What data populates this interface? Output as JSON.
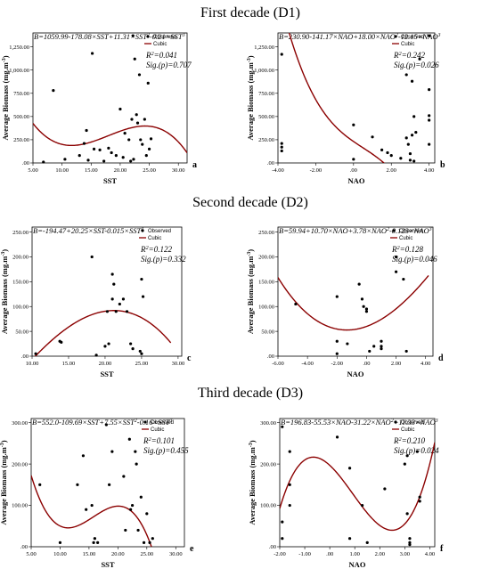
{
  "decades": [
    {
      "title": "First decade (D1)"
    },
    {
      "title": "Second decade (D2)"
    },
    {
      "title": "Third decade (D3)"
    }
  ],
  "chart_data": [
    {
      "panel": "a",
      "type": "scatter",
      "decade": 0,
      "equation": "B=1059.99-178.08×SST+11.31×SST^2-0.21×SST^3",
      "r2": "R^2=0.041",
      "sig": "Sig.(p)=0.707",
      "xlabel": "SST",
      "ylabel": "Average Biomass (mg.m^-3)",
      "xlim": [
        5,
        31.5
      ],
      "ylim": [
        0,
        1400
      ],
      "xticks": [
        5,
        10,
        15,
        20,
        25,
        30
      ],
      "xticklabels": [
        "5.00",
        "10.00",
        "15.00",
        "20.00",
        "25.00",
        "30.00"
      ],
      "yticks": [
        0,
        250,
        500,
        750,
        1000,
        1250
      ],
      "yticklabels": [
        ".00",
        "250.00",
        "500.00",
        "750.00",
        "1,000.00",
        "1,250.00"
      ],
      "legend": [
        "Observed",
        "Cubic"
      ],
      "legend_position": "top-right",
      "cubic_coeffs": [
        1059.99,
        -178.08,
        11.31,
        -0.21
      ],
      "curve_x_range": [
        5,
        31.5
      ],
      "points": [
        [
          6.8,
          10
        ],
        [
          8.5,
          780
        ],
        [
          10.5,
          40
        ],
        [
          13,
          80
        ],
        [
          13.8,
          210
        ],
        [
          14.2,
          350
        ],
        [
          14.5,
          30
        ],
        [
          15.2,
          1180
        ],
        [
          15.5,
          150
        ],
        [
          16.5,
          140
        ],
        [
          17.2,
          20
        ],
        [
          18,
          160
        ],
        [
          18.5,
          110
        ],
        [
          19.3,
          80
        ],
        [
          20,
          580
        ],
        [
          20.5,
          60
        ],
        [
          20.8,
          320
        ],
        [
          21.5,
          250
        ],
        [
          21.8,
          20
        ],
        [
          22,
          470
        ],
        [
          22.2,
          1370
        ],
        [
          22.3,
          40
        ],
        [
          22.5,
          1120
        ],
        [
          22.8,
          520
        ],
        [
          23,
          430
        ],
        [
          23.3,
          950
        ],
        [
          23.5,
          250
        ],
        [
          23.8,
          200
        ],
        [
          24.2,
          470
        ],
        [
          24.5,
          80
        ],
        [
          24.8,
          860
        ],
        [
          25,
          150
        ],
        [
          25.3,
          260
        ]
      ]
    },
    {
      "panel": "b",
      "type": "scatter",
      "decade": 0,
      "equation": "B=230.90-141.17×NAO+18.00×NAO^2-12.15×NAO^3",
      "r2": "R^2=0.242",
      "sig": "Sig.(p)=0.026",
      "xlabel": "NAO",
      "ylabel": "Average Biomass (mg.m^-3)",
      "xlim": [
        -4,
        4.3
      ],
      "ylim": [
        0,
        1400
      ],
      "xticks": [
        -4,
        -2,
        0,
        2,
        4
      ],
      "xticklabels": [
        "-4.00",
        "-2.00",
        ".00",
        "2.00",
        "4.00"
      ],
      "yticks": [
        0,
        250,
        500,
        750,
        1000,
        1250
      ],
      "yticklabels": [
        ".00",
        "250.00",
        "500.00",
        "750.00",
        "1,000.00",
        "1,250.00"
      ],
      "legend": [
        "Observed",
        "Cubic"
      ],
      "legend_position": "top-right",
      "cubic_coeffs": [
        230.9,
        -141.17,
        18.0,
        -12.15
      ],
      "curve_x_range": [
        -4,
        4.3
      ],
      "points": [
        [
          -3.8,
          1170
        ],
        [
          -3.8,
          130
        ],
        [
          -3.8,
          170
        ],
        [
          -3.8,
          210
        ],
        [
          0,
          410
        ],
        [
          0,
          40
        ],
        [
          1,
          280
        ],
        [
          1.5,
          140
        ],
        [
          1.8,
          110
        ],
        [
          2,
          80
        ],
        [
          2.5,
          50
        ],
        [
          2.8,
          270
        ],
        [
          2.8,
          950
        ],
        [
          2.9,
          200
        ],
        [
          3,
          100
        ],
        [
          3,
          30
        ],
        [
          3.1,
          880
        ],
        [
          3.1,
          300
        ],
        [
          3.2,
          500
        ],
        [
          3.2,
          20
        ],
        [
          3.3,
          330
        ],
        [
          3.5,
          1120
        ],
        [
          4,
          200
        ],
        [
          4,
          460
        ],
        [
          4,
          510
        ],
        [
          4,
          790
        ],
        [
          4,
          1370
        ]
      ]
    },
    {
      "panel": "c",
      "type": "scatter",
      "decade": 1,
      "equation": "B=-194.47+20.25×SST-0.015×SST^3",
      "r2": "R^2=0.122",
      "sig": "Sig.(p)=0.332",
      "xlabel": "SST",
      "ylabel": "Average Biomass (mg.m^-3)",
      "xlim": [
        10,
        30.5
      ],
      "ylim": [
        0,
        260
      ],
      "xticks": [
        10,
        15,
        20,
        25,
        30
      ],
      "xticklabels": [
        "10.00",
        "15.00",
        "20.00",
        "25.00",
        "30.00"
      ],
      "yticks": [
        0,
        50,
        100,
        150,
        200,
        250
      ],
      "yticklabels": [
        ".00",
        "50.00",
        "100.00",
        "150.00",
        "200.00",
        "250.00"
      ],
      "legend": [
        "Observed",
        "Cubic"
      ],
      "legend_position": "top-right",
      "cubic_coeffs": [
        -194.47,
        20.25,
        0,
        -0.015
      ],
      "curve_x_range": [
        10,
        29
      ],
      "points": [
        [
          10.5,
          5
        ],
        [
          13.8,
          30
        ],
        [
          14,
          28
        ],
        [
          18.2,
          200
        ],
        [
          18.8,
          2
        ],
        [
          20,
          20
        ],
        [
          20.3,
          90
        ],
        [
          20.5,
          25
        ],
        [
          21,
          115
        ],
        [
          21,
          165
        ],
        [
          21.2,
          145
        ],
        [
          21.5,
          90
        ],
        [
          22,
          105
        ],
        [
          22.5,
          115
        ],
        [
          23,
          90
        ],
        [
          23.5,
          25
        ],
        [
          23.8,
          15
        ],
        [
          24.8,
          10
        ],
        [
          25,
          155
        ],
        [
          25,
          5
        ],
        [
          25.2,
          120
        ]
      ]
    },
    {
      "panel": "d",
      "type": "scatter",
      "decade": 1,
      "equation": "B=59.94+10.70×NAO+3.78×NAO^2-0.123×NAO^3",
      "r2": "R^2=0.128",
      "sig": "Sig.(p)=0.046",
      "xlabel": "NAO",
      "ylabel": "Average Biomass (mg.m^-3)",
      "xlim": [
        -6,
        4.5
      ],
      "ylim": [
        0,
        260
      ],
      "xticks": [
        -6,
        -4,
        -2,
        0,
        2,
        4
      ],
      "xticklabels": [
        "-6.00",
        "-4.00",
        "-2.00",
        ".00",
        "2.00",
        "4.00"
      ],
      "yticks": [
        0,
        50,
        100,
        150,
        200,
        250
      ],
      "yticklabels": [
        ".00",
        "50.00",
        "100.00",
        "150.00",
        "200.00",
        "250.00"
      ],
      "legend": [
        "Observed",
        "Cubic"
      ],
      "legend_position": "top-right",
      "cubic_coeffs": [
        59.94,
        10.7,
        3.78,
        -0.123
      ],
      "curve_x_range": [
        -6,
        4.2
      ],
      "points": [
        [
          -4.8,
          105
        ],
        [
          -2,
          120
        ],
        [
          -2,
          30
        ],
        [
          -2,
          5
        ],
        [
          -1.3,
          25
        ],
        [
          -0.5,
          145
        ],
        [
          -0.3,
          115
        ],
        [
          -0.2,
          100
        ],
        [
          0,
          90
        ],
        [
          0,
          95
        ],
        [
          0.2,
          10
        ],
        [
          0.5,
          20
        ],
        [
          1,
          20
        ],
        [
          1,
          30
        ],
        [
          1,
          15
        ],
        [
          2,
          200
        ],
        [
          2,
          170
        ],
        [
          2.5,
          155
        ],
        [
          2.7,
          10
        ]
      ]
    },
    {
      "panel": "e",
      "type": "scatter",
      "decade": 2,
      "equation": "B=552.0-109.69×SST+7.55×SST^2-0.16×SST^3",
      "r2": "R^2=0.101",
      "sig": "Sig.(p)=0.455",
      "xlabel": "SST",
      "ylabel": "Average Biomass (mg.m^-3)",
      "xlim": [
        5,
        31.5
      ],
      "ylim": [
        0,
        310
      ],
      "xticks": [
        5,
        10,
        15,
        20,
        25,
        30
      ],
      "xticklabels": [
        "5.00",
        "10.00",
        "15.00",
        "20.00",
        "25.00",
        "30.00"
      ],
      "yticks": [
        0,
        100,
        200,
        300
      ],
      "yticklabels": [
        ".00",
        "100.00",
        "200.00",
        "300.00"
      ],
      "legend": [
        "Observed",
        "Cubic"
      ],
      "legend_position": "top-right",
      "cubic_coeffs": [
        552.0,
        -109.69,
        7.55,
        -0.16
      ],
      "curve_x_range": [
        5,
        26.5
      ],
      "points": [
        [
          6.5,
          150
        ],
        [
          10,
          10
        ],
        [
          13,
          150
        ],
        [
          14,
          220
        ],
        [
          14.5,
          90
        ],
        [
          15.5,
          100
        ],
        [
          15.8,
          10
        ],
        [
          16,
          20
        ],
        [
          16.5,
          10
        ],
        [
          18,
          295
        ],
        [
          18.5,
          150
        ],
        [
          19,
          230
        ],
        [
          21,
          170
        ],
        [
          21.3,
          40
        ],
        [
          22,
          260
        ],
        [
          22.2,
          90
        ],
        [
          22.5,
          100
        ],
        [
          23,
          230
        ],
        [
          23.2,
          200
        ],
        [
          23.5,
          40
        ],
        [
          24,
          120
        ],
        [
          24.5,
          10
        ],
        [
          25,
          80
        ],
        [
          25.5,
          10
        ],
        [
          26,
          20
        ]
      ]
    },
    {
      "panel": "f",
      "type": "scatter",
      "decade": 2,
      "equation": "B=196.83-55.53×NAO-31.22×NAO^2+11.33×NAO^3",
      "r2": "R^2=0.210",
      "sig": "Sig.(p)=0.024",
      "xlabel": "NAO",
      "ylabel": "Average Biomass (mg.m^-3)",
      "xlim": [
        -2,
        4.2
      ],
      "ylim": [
        0,
        310
      ],
      "xticks": [
        -2,
        -1,
        0,
        1,
        2,
        3,
        4
      ],
      "xticklabels": [
        "-2.00",
        "-1.00",
        ".00",
        "1.00",
        "2.00",
        "3.00",
        "4.00"
      ],
      "yticks": [
        0,
        100,
        200,
        300
      ],
      "yticklabels": [
        ".00",
        "100.00",
        "200.00",
        "300.00"
      ],
      "legend": [
        "Observed",
        "Cubic"
      ],
      "legend_position": "top-right",
      "cubic_coeffs": [
        196.83,
        -55.53,
        -31.22,
        11.33
      ],
      "curve_x_range": [
        -2,
        4.2
      ],
      "points": [
        [
          -1.9,
          290
        ],
        [
          -1.9,
          60
        ],
        [
          -1.9,
          20
        ],
        [
          -1.6,
          230
        ],
        [
          -1.6,
          150
        ],
        [
          -1.6,
          100
        ],
        [
          0.3,
          265
        ],
        [
          0.8,
          190
        ],
        [
          0.8,
          20
        ],
        [
          1.3,
          100
        ],
        [
          1.5,
          10
        ],
        [
          2.2,
          140
        ],
        [
          3,
          200
        ],
        [
          3.1,
          220
        ],
        [
          3.1,
          80
        ],
        [
          3.2,
          20
        ],
        [
          3.2,
          10
        ],
        [
          3.2,
          5
        ],
        [
          3.5,
          230
        ],
        [
          3.6,
          120
        ],
        [
          3.6,
          110
        ]
      ]
    }
  ]
}
